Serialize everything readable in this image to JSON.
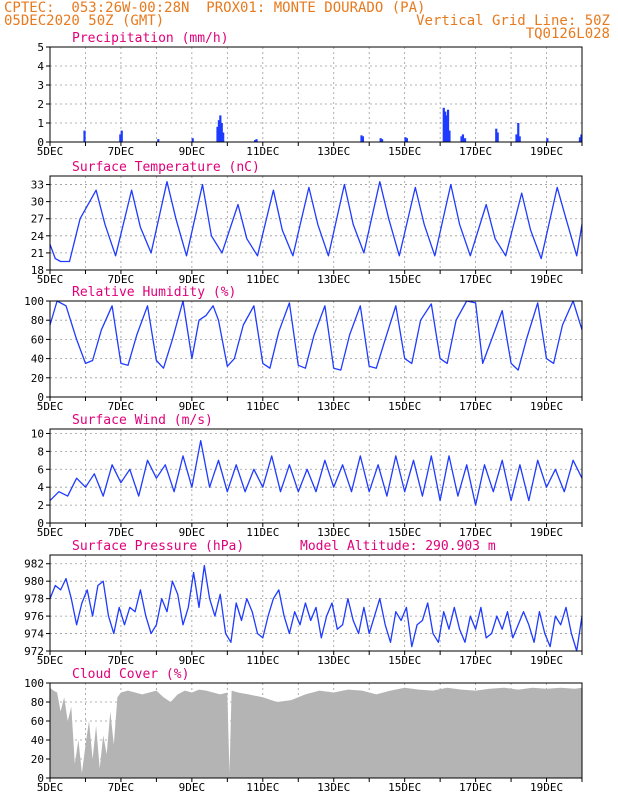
{
  "header": {
    "line1_left": "CPTEC:  053:26W-00:28N  PROX01: MONTE DOURADO (PA)",
    "line2_left": "05DEC2020 50Z (GMT)",
    "line2_right": "Vertical Grid Line: 50Z",
    "line3_right": "TQ0126L028"
  },
  "colors": {
    "header": "#e87a1e",
    "title": "#e0007a",
    "series": "#1f3bff",
    "cloud": "#b4b4b4"
  },
  "x_day_labels": [
    "5DEC",
    "7DEC",
    "9DEC",
    "11DEC",
    "13DEC",
    "15DEC",
    "17DEC",
    "19DEC"
  ],
  "chart_data": [
    {
      "id": "precip",
      "type": "bar",
      "title": "Precipitation (mm/h)",
      "ylim": [
        0,
        5
      ],
      "yticks": [
        "0",
        "1",
        "2",
        "3",
        "4",
        "5"
      ],
      "xlim_days": [
        0,
        15
      ],
      "grid": true,
      "x": [
        0.97,
        1.98,
        2.02,
        3.05,
        4.02,
        4.72,
        4.76,
        4.8,
        4.84,
        4.88,
        5.78,
        5.82,
        8.78,
        8.82,
        9.32,
        9.36,
        10.02,
        10.06,
        11.1,
        11.14,
        11.18,
        11.22,
        11.26,
        11.6,
        11.64,
        11.7,
        12.58,
        12.62,
        13.15,
        13.2,
        13.24,
        14.02,
        14.94,
        14.98
      ],
      "values": [
        0.6,
        0.4,
        0.6,
        0.15,
        0.2,
        0.8,
        1.15,
        1.4,
        1.0,
        0.5,
        0.1,
        0.15,
        0.35,
        0.3,
        0.2,
        0.15,
        0.25,
        0.2,
        1.8,
        1.6,
        1.4,
        1.7,
        0.6,
        0.3,
        0.4,
        0.2,
        0.7,
        0.5,
        0.4,
        1.0,
        0.3,
        0.2,
        0.25,
        0.4
      ]
    },
    {
      "id": "temp",
      "type": "line",
      "title": "Surface Temperature (nC)",
      "ylim": [
        18,
        34.5
      ],
      "yticks": [
        "18",
        "21",
        "24",
        "27",
        "30",
        "33"
      ],
      "xlim_days": [
        0,
        15
      ],
      "grid": true,
      "x": [
        0,
        0.15,
        0.3,
        0.55,
        0.85,
        1.3,
        1.55,
        1.85,
        2.3,
        2.55,
        2.85,
        3.3,
        3.55,
        3.85,
        4.3,
        4.55,
        4.85,
        5.3,
        5.55,
        5.85,
        6.3,
        6.55,
        6.85,
        7.3,
        7.55,
        7.85,
        8.3,
        8.55,
        8.85,
        9.3,
        9.55,
        9.85,
        10.3,
        10.55,
        10.85,
        11.3,
        11.55,
        11.85,
        12.3,
        12.55,
        12.85,
        13.3,
        13.55,
        13.85,
        14.3,
        14.55,
        14.85,
        15
      ],
      "values": [
        22.5,
        20,
        19.5,
        19.5,
        27,
        32,
        26,
        20.5,
        32,
        25.5,
        21,
        33.5,
        27,
        20.5,
        33,
        24,
        21,
        29.5,
        23.5,
        20.5,
        32,
        25,
        20.5,
        32.5,
        26,
        20.5,
        33,
        26,
        21,
        33.5,
        27,
        20.5,
        32.5,
        26,
        20.5,
        33,
        26,
        20.5,
        29.5,
        23.5,
        20.5,
        31.5,
        25,
        20,
        32.5,
        27,
        20.5,
        26
      ]
    },
    {
      "id": "rh",
      "type": "line",
      "title": "Relative Humidity (%)",
      "ylim": [
        0,
        100
      ],
      "yticks": [
        "0",
        "20",
        "40",
        "60",
        "80",
        "100"
      ],
      "xlim_days": [
        0,
        15
      ],
      "grid": true,
      "x": [
        0,
        0.2,
        0.45,
        0.75,
        1.0,
        1.2,
        1.45,
        1.75,
        2.0,
        2.2,
        2.45,
        2.75,
        3.0,
        3.2,
        3.45,
        3.75,
        4.0,
        4.2,
        4.4,
        4.6,
        4.75,
        5.0,
        5.2,
        5.45,
        5.75,
        6.0,
        6.2,
        6.45,
        6.75,
        7.0,
        7.2,
        7.45,
        7.75,
        8.0,
        8.2,
        8.45,
        8.75,
        9.0,
        9.2,
        9.45,
        9.75,
        10.0,
        10.2,
        10.45,
        10.75,
        11.0,
        11.2,
        11.45,
        11.75,
        12.0,
        12.2,
        12.45,
        12.75,
        13.0,
        13.2,
        13.45,
        13.75,
        14.0,
        14.2,
        14.45,
        14.75,
        15.0
      ],
      "values": [
        75,
        100,
        95,
        60,
        35,
        38,
        70,
        95,
        35,
        33,
        65,
        95,
        38,
        30,
        60,
        100,
        40,
        80,
        85,
        95,
        80,
        32,
        40,
        75,
        95,
        35,
        30,
        68,
        98,
        33,
        30,
        65,
        95,
        30,
        28,
        65,
        95,
        32,
        30,
        60,
        95,
        40,
        35,
        80,
        97,
        40,
        35,
        80,
        100,
        98,
        35,
        60,
        90,
        35,
        28,
        62,
        98,
        40,
        35,
        75,
        100,
        70
      ]
    },
    {
      "id": "wind",
      "type": "line",
      "title": "Surface Wind (m/s)",
      "ylim": [
        0,
        10.5
      ],
      "yticks": [
        "0",
        "2",
        "4",
        "6",
        "8",
        "10"
      ],
      "xlim_days": [
        0,
        15
      ],
      "grid": true,
      "x": [
        0,
        0.25,
        0.5,
        0.75,
        1.0,
        1.25,
        1.5,
        1.75,
        2.0,
        2.25,
        2.5,
        2.75,
        3.0,
        3.25,
        3.5,
        3.75,
        4.0,
        4.25,
        4.5,
        4.75,
        5.0,
        5.25,
        5.5,
        5.75,
        6.0,
        6.25,
        6.5,
        6.75,
        7.0,
        7.25,
        7.5,
        7.75,
        8.0,
        8.25,
        8.5,
        8.75,
        9.0,
        9.25,
        9.5,
        9.75,
        10.0,
        10.25,
        10.5,
        10.75,
        11.0,
        11.25,
        11.5,
        11.75,
        12.0,
        12.25,
        12.5,
        12.75,
        13.0,
        13.25,
        13.5,
        13.75,
        14.0,
        14.25,
        14.5,
        14.75,
        15.0
      ],
      "values": [
        2.5,
        3.5,
        3,
        5,
        4,
        5.5,
        3,
        6.5,
        4.5,
        6,
        3,
        7,
        5,
        6.5,
        3.5,
        7.5,
        4,
        9.2,
        4,
        7,
        3.5,
        6.5,
        3.5,
        6,
        4,
        7.5,
        3.5,
        6.5,
        3.5,
        6,
        3.5,
        7,
        4,
        6.5,
        3.5,
        7.5,
        3.5,
        6.5,
        3,
        7.5,
        3.5,
        7,
        3,
        7.5,
        2.5,
        7.5,
        3,
        6.5,
        2,
        6.5,
        3.5,
        7,
        2.5,
        6.5,
        2.5,
        7,
        4,
        6,
        3.5,
        7,
        5
      ]
    },
    {
      "id": "pres",
      "type": "line",
      "title": "Surface Pressure (hPa)",
      "subtitle": "Model Altitude: 290.903 m",
      "ylim": [
        972,
        983
      ],
      "yticks": [
        "972",
        "974",
        "976",
        "978",
        "980",
        "982"
      ],
      "xlim_days": [
        0,
        15
      ],
      "grid": true,
      "x": [
        0,
        0.15,
        0.3,
        0.45,
        0.6,
        0.75,
        0.9,
        1.05,
        1.2,
        1.35,
        1.5,
        1.65,
        1.8,
        1.95,
        2.1,
        2.25,
        2.4,
        2.55,
        2.7,
        2.85,
        3.0,
        3.15,
        3.3,
        3.45,
        3.6,
        3.75,
        3.9,
        4.05,
        4.2,
        4.35,
        4.5,
        4.65,
        4.8,
        4.95,
        5.1,
        5.25,
        5.4,
        5.55,
        5.7,
        5.85,
        6.0,
        6.15,
        6.3,
        6.45,
        6.6,
        6.75,
        6.9,
        7.05,
        7.2,
        7.35,
        7.5,
        7.65,
        7.8,
        7.95,
        8.1,
        8.25,
        8.4,
        8.55,
        8.7,
        8.85,
        9.0,
        9.15,
        9.3,
        9.45,
        9.6,
        9.75,
        9.9,
        10.05,
        10.2,
        10.35,
        10.5,
        10.65,
        10.8,
        10.95,
        11.1,
        11.25,
        11.4,
        11.55,
        11.7,
        11.85,
        12.0,
        12.15,
        12.3,
        12.45,
        12.6,
        12.75,
        12.9,
        13.05,
        13.2,
        13.35,
        13.5,
        13.65,
        13.8,
        13.95,
        14.1,
        14.25,
        14.4,
        14.55,
        14.7,
        14.85,
        15.0
      ],
      "values": [
        978,
        979.5,
        979,
        980.3,
        978,
        975,
        977.5,
        979,
        976,
        979.5,
        980,
        976,
        974,
        977,
        975,
        977,
        976.5,
        979,
        976,
        974,
        975,
        978,
        976.5,
        980,
        978.5,
        975,
        977,
        981,
        977,
        981.8,
        978,
        976,
        978.5,
        974,
        973,
        977.5,
        975.5,
        978,
        976.5,
        974,
        973.5,
        976,
        978,
        979,
        976,
        974,
        976.5,
        975,
        977.5,
        975.5,
        977,
        973.5,
        976,
        977.5,
        974.5,
        975,
        978,
        975.5,
        974,
        977,
        974,
        976,
        978,
        975,
        973,
        976.5,
        975.5,
        977,
        972.5,
        975,
        975.5,
        977.5,
        974,
        973,
        976.5,
        974.5,
        977,
        974.5,
        973,
        976,
        974.5,
        977,
        973.5,
        974,
        976,
        974.5,
        976.5,
        973.5,
        975,
        976.5,
        975,
        973,
        976.5,
        974,
        972.5,
        976,
        975,
        977,
        974,
        972,
        976
      ]
    },
    {
      "id": "cloud",
      "type": "area",
      "title": "Cloud Cover (%)",
      "ylim": [
        0,
        100
      ],
      "yticks": [
        "0",
        "20",
        "40",
        "60",
        "80",
        "100"
      ],
      "xlim_days": [
        0,
        15
      ],
      "grid": true,
      "x": [
        0,
        0.1,
        0.2,
        0.3,
        0.4,
        0.5,
        0.6,
        0.7,
        0.8,
        0.9,
        1.0,
        1.1,
        1.2,
        1.3,
        1.4,
        1.5,
        1.6,
        1.7,
        1.8,
        1.9,
        2.0,
        2.2,
        2.4,
        2.6,
        2.8,
        3.0,
        3.2,
        3.4,
        3.6,
        3.8,
        4.0,
        4.2,
        4.4,
        4.6,
        4.8,
        5.0,
        5.06,
        5.12,
        5.3,
        5.6,
        6.0,
        6.4,
        6.8,
        7.2,
        7.6,
        8.0,
        8.4,
        8.8,
        9.2,
        9.6,
        10.0,
        10.4,
        10.8,
        11.2,
        11.6,
        12.0,
        12.4,
        12.8,
        13.2,
        13.6,
        14.0,
        14.4,
        14.8,
        15.0
      ],
      "values": [
        95,
        92,
        90,
        70,
        85,
        60,
        75,
        15,
        40,
        5,
        35,
        60,
        20,
        55,
        10,
        45,
        25,
        70,
        35,
        85,
        90,
        92,
        90,
        88,
        90,
        92,
        85,
        80,
        88,
        92,
        90,
        93,
        92,
        90,
        88,
        90,
        5,
        92,
        90,
        88,
        85,
        80,
        82,
        88,
        92,
        90,
        93,
        92,
        88,
        92,
        95,
        93,
        92,
        95,
        93,
        92,
        94,
        95,
        93,
        95,
        94,
        95,
        94,
        95
      ]
    }
  ]
}
